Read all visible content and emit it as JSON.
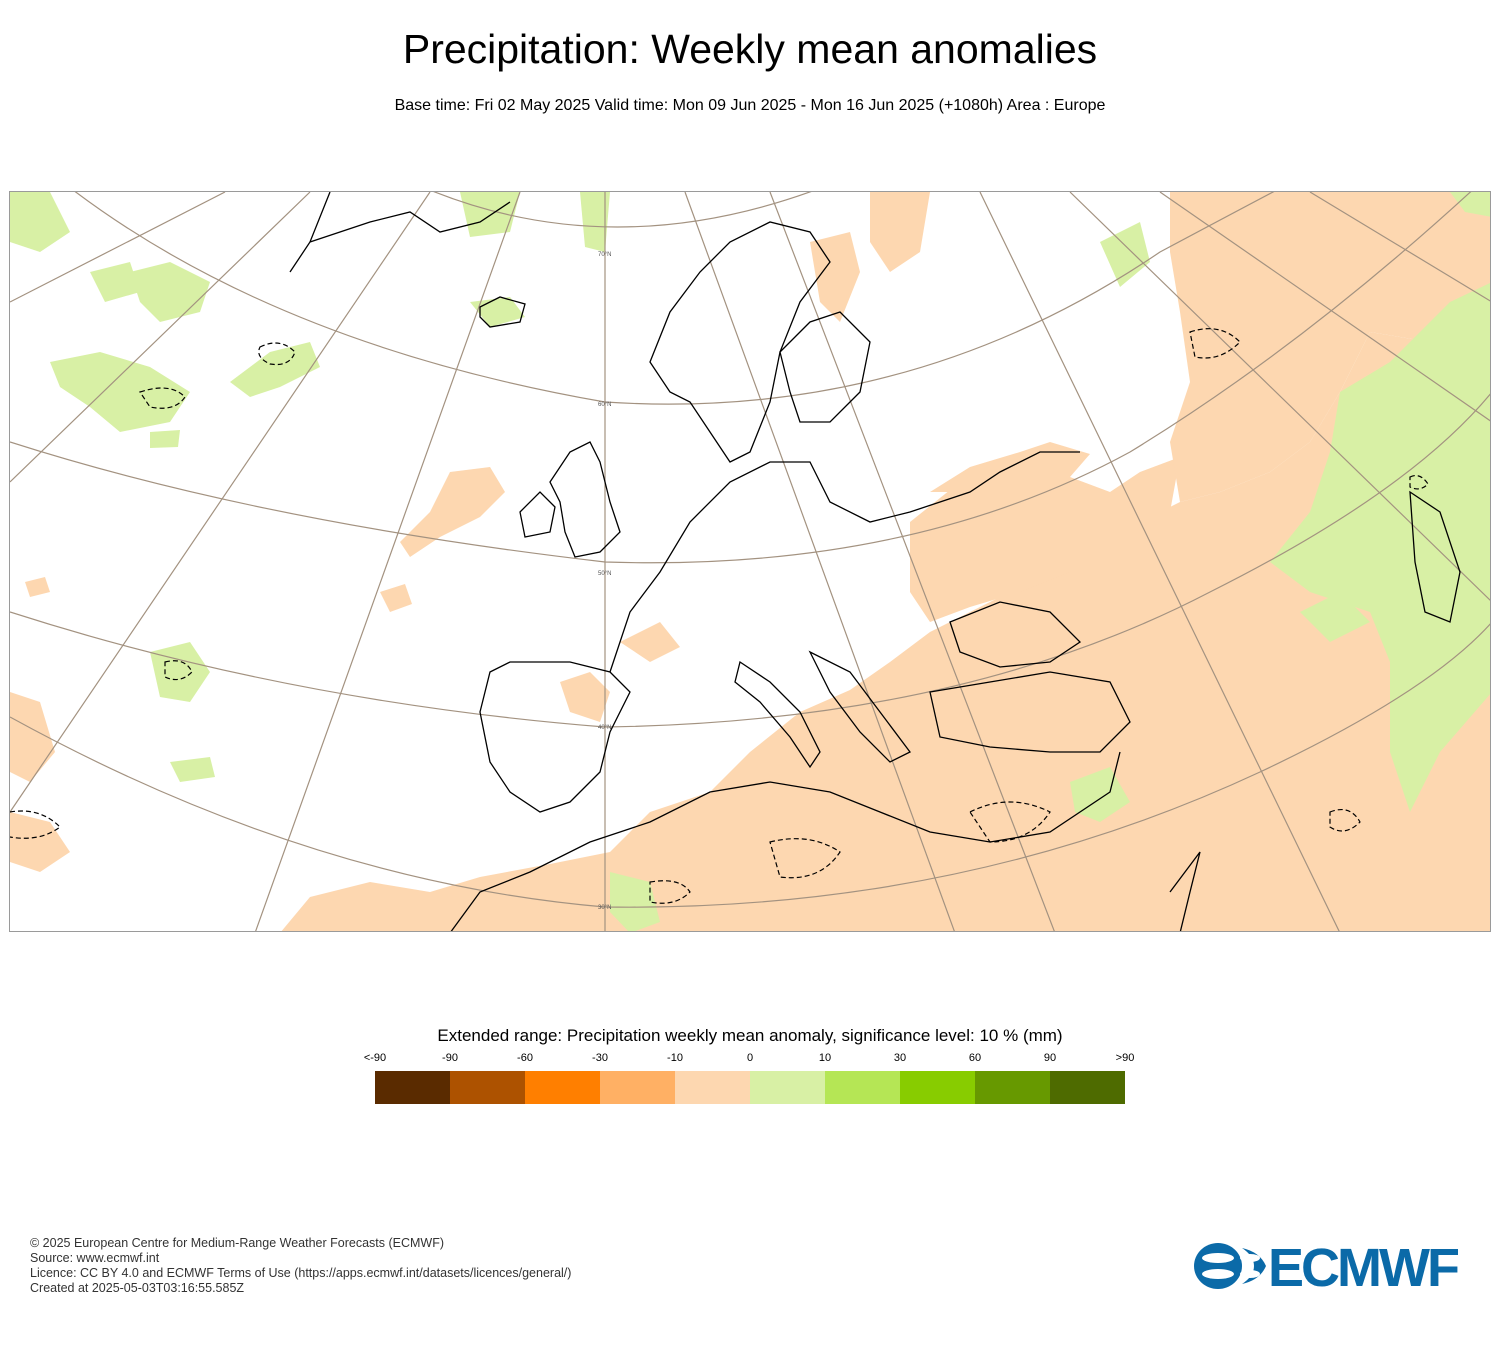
{
  "header": {
    "title": "Precipitation: Weekly mean anomalies",
    "subtitle": "Base time: Fri 02 May 2025 Valid time: Mon 09 Jun 2025 - Mon 16 Jun 2025 (+1080h) Area : Europe"
  },
  "map": {
    "lat_labels": [
      "70°N",
      "60°N",
      "50°N",
      "40°N",
      "30°N"
    ],
    "colors": {
      "neg_small": "#fdd7b0",
      "pos_small": "#d8f0a5",
      "coast": "#000000",
      "graticule": "#a39280",
      "border": "#666666"
    }
  },
  "legend": {
    "title": "Extended range: Precipitation weekly mean anomaly, significance level: 10 % (mm)",
    "labels": [
      "<-90",
      "-90",
      "-60",
      "-30",
      "-10",
      "0",
      "10",
      "30",
      "60",
      "90",
      ">90"
    ],
    "colors": [
      "#5a2b00",
      "#ad5200",
      "#ff7f00",
      "#ffb064",
      "#fdd7b0",
      "#d8f0a5",
      "#b5e655",
      "#88cc00",
      "#679900",
      "#4e6b00"
    ]
  },
  "footer": {
    "line1": "© 2025 European Centre for Medium-Range Weather Forecasts (ECMWF)",
    "line2": "Source: www.ecmwf.int",
    "line3": "Licence: CC BY 4.0 and ECMWF Terms of Use (https://apps.ecmwf.int/datasets/licences/general/)",
    "line4": "Created at 2025-05-03T03:16:55.585Z"
  },
  "logo": {
    "text": "ECMWF",
    "color": "#0b6aa8"
  }
}
